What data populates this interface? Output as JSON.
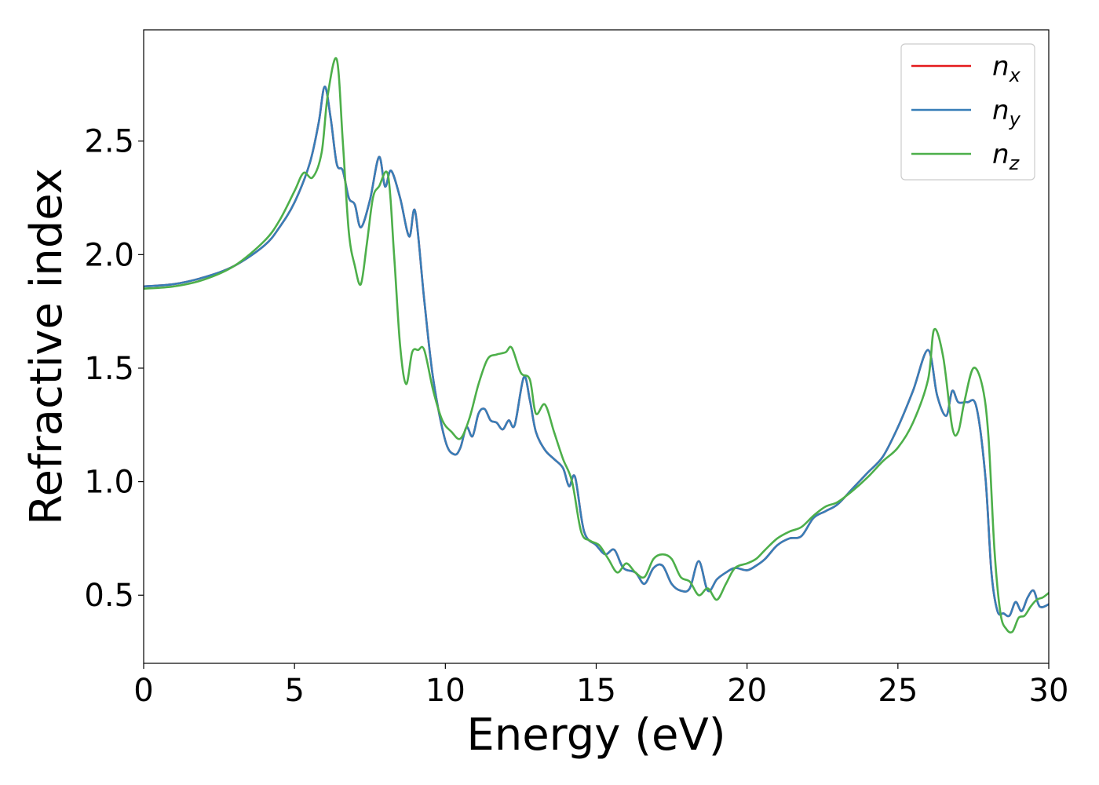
{
  "chart_data": {
    "type": "line",
    "title": "",
    "xlabel": "Energy (eV)",
    "ylabel": "Refractive index",
    "xlim": [
      0,
      30
    ],
    "ylim": [
      0.2,
      2.99
    ],
    "xticks": [
      0,
      5,
      10,
      15,
      20,
      25,
      30
    ],
    "yticks": [
      0.5,
      1.0,
      1.5,
      2.0,
      2.5
    ],
    "xtick_labels": [
      "0",
      "5",
      "10",
      "15",
      "20",
      "25",
      "30"
    ],
    "ytick_labels": [
      "0.5",
      "1.0",
      "1.5",
      "2.0",
      "2.5"
    ],
    "grid": false,
    "legend_position": "top-right",
    "series": [
      {
        "name": "n_x",
        "legend_base": "n",
        "legend_sub": "x",
        "color": "#e41a1c",
        "x": [
          0,
          1,
          2,
          3,
          4,
          4.5,
          5,
          5.5,
          5.8,
          6,
          6.2,
          6.4,
          6.6,
          6.8,
          7,
          7.2,
          7.5,
          7.8,
          8,
          8.2,
          8.5,
          8.8,
          9,
          9.3,
          9.6,
          10,
          10.3,
          10.5,
          10.7,
          10.9,
          11.1,
          11.3,
          11.5,
          11.7,
          11.9,
          12.1,
          12.3,
          12.6,
          12.8,
          13,
          13.3,
          13.6,
          13.9,
          14.1,
          14.3,
          14.6,
          15,
          15.3,
          15.6,
          15.9,
          16.3,
          16.6,
          16.9,
          17.2,
          17.5,
          17.8,
          18.1,
          18.4,
          18.7,
          19,
          19.3,
          19.6,
          20,
          20.3,
          20.6,
          21,
          21.4,
          21.8,
          22.2,
          22.6,
          23,
          23.5,
          24,
          24.5,
          25,
          25.5,
          26,
          26.3,
          26.6,
          26.8,
          27,
          27.3,
          27.6,
          27.9,
          28.1,
          28.3,
          28.5,
          28.7,
          28.9,
          29.1,
          29.3,
          29.5,
          29.7,
          30
        ],
        "y": [
          1.86,
          1.87,
          1.9,
          1.95,
          2.04,
          2.12,
          2.23,
          2.4,
          2.58,
          2.74,
          2.6,
          2.4,
          2.37,
          2.25,
          2.22,
          2.12,
          2.24,
          2.43,
          2.3,
          2.37,
          2.25,
          2.08,
          2.19,
          1.8,
          1.45,
          1.18,
          1.12,
          1.15,
          1.24,
          1.2,
          1.3,
          1.32,
          1.27,
          1.26,
          1.23,
          1.27,
          1.25,
          1.46,
          1.36,
          1.22,
          1.14,
          1.1,
          1.06,
          0.98,
          1.02,
          0.78,
          0.72,
          0.68,
          0.7,
          0.62,
          0.6,
          0.55,
          0.62,
          0.63,
          0.55,
          0.52,
          0.53,
          0.65,
          0.52,
          0.57,
          0.6,
          0.62,
          0.61,
          0.63,
          0.66,
          0.72,
          0.75,
          0.76,
          0.84,
          0.87,
          0.9,
          0.97,
          1.04,
          1.11,
          1.24,
          1.4,
          1.58,
          1.38,
          1.29,
          1.4,
          1.35,
          1.35,
          1.33,
          1.02,
          0.6,
          0.43,
          0.42,
          0.41,
          0.47,
          0.43,
          0.49,
          0.52,
          0.45,
          0.46
        ]
      },
      {
        "name": "n_y",
        "legend_base": "n",
        "legend_sub": "y",
        "color": "#377eb8",
        "x": [
          0,
          1,
          2,
          3,
          4,
          4.5,
          5,
          5.5,
          5.8,
          6,
          6.2,
          6.4,
          6.6,
          6.8,
          7,
          7.2,
          7.5,
          7.8,
          8,
          8.2,
          8.5,
          8.8,
          9,
          9.3,
          9.6,
          10,
          10.3,
          10.5,
          10.7,
          10.9,
          11.1,
          11.3,
          11.5,
          11.7,
          11.9,
          12.1,
          12.3,
          12.6,
          12.8,
          13,
          13.3,
          13.6,
          13.9,
          14.1,
          14.3,
          14.6,
          15,
          15.3,
          15.6,
          15.9,
          16.3,
          16.6,
          16.9,
          17.2,
          17.5,
          17.8,
          18.1,
          18.4,
          18.7,
          19,
          19.3,
          19.6,
          20,
          20.3,
          20.6,
          21,
          21.4,
          21.8,
          22.2,
          22.6,
          23,
          23.5,
          24,
          24.5,
          25,
          25.5,
          26,
          26.3,
          26.6,
          26.8,
          27,
          27.3,
          27.6,
          27.9,
          28.1,
          28.3,
          28.5,
          28.7,
          28.9,
          29.1,
          29.3,
          29.5,
          29.7,
          30
        ],
        "y": [
          1.86,
          1.87,
          1.9,
          1.95,
          2.04,
          2.12,
          2.23,
          2.4,
          2.58,
          2.74,
          2.6,
          2.4,
          2.37,
          2.25,
          2.22,
          2.12,
          2.24,
          2.43,
          2.3,
          2.37,
          2.25,
          2.08,
          2.19,
          1.8,
          1.45,
          1.18,
          1.12,
          1.15,
          1.24,
          1.2,
          1.3,
          1.32,
          1.27,
          1.26,
          1.23,
          1.27,
          1.25,
          1.46,
          1.36,
          1.22,
          1.14,
          1.1,
          1.06,
          0.98,
          1.02,
          0.78,
          0.72,
          0.68,
          0.7,
          0.62,
          0.6,
          0.55,
          0.62,
          0.63,
          0.55,
          0.52,
          0.53,
          0.65,
          0.52,
          0.57,
          0.6,
          0.62,
          0.61,
          0.63,
          0.66,
          0.72,
          0.75,
          0.76,
          0.84,
          0.87,
          0.9,
          0.97,
          1.04,
          1.11,
          1.24,
          1.4,
          1.58,
          1.38,
          1.29,
          1.4,
          1.35,
          1.35,
          1.33,
          1.02,
          0.6,
          0.43,
          0.42,
          0.41,
          0.47,
          0.43,
          0.49,
          0.52,
          0.45,
          0.46
        ]
      },
      {
        "name": "n_z",
        "legend_base": "n",
        "legend_sub": "z",
        "color": "#4daf4a",
        "x": [
          0,
          1,
          2,
          3,
          4,
          4.5,
          5,
          5.3,
          5.6,
          5.9,
          6.1,
          6.4,
          6.6,
          6.8,
          7,
          7.2,
          7.4,
          7.6,
          7.8,
          8.1,
          8.3,
          8.5,
          8.7,
          8.9,
          9.1,
          9.3,
          9.6,
          9.9,
          10.2,
          10.5,
          10.8,
          11.1,
          11.4,
          11.7,
          12,
          12.2,
          12.5,
          12.8,
          13,
          13.3,
          13.6,
          13.9,
          14.2,
          14.5,
          14.8,
          15.1,
          15.4,
          15.7,
          16,
          16.3,
          16.6,
          16.9,
          17.2,
          17.5,
          17.8,
          18.1,
          18.4,
          18.7,
          19,
          19.3,
          19.6,
          20,
          20.3,
          20.6,
          21,
          21.4,
          21.8,
          22.2,
          22.6,
          23,
          23.5,
          24,
          24.5,
          25,
          25.5,
          26,
          26.2,
          26.5,
          26.8,
          27,
          27.2,
          27.5,
          27.8,
          28,
          28.2,
          28.4,
          28.6,
          28.8,
          29,
          29.2,
          29.4,
          29.6,
          29.8,
          30
        ],
        "y": [
          1.85,
          1.86,
          1.89,
          1.95,
          2.06,
          2.15,
          2.28,
          2.36,
          2.34,
          2.45,
          2.7,
          2.86,
          2.5,
          2.1,
          1.95,
          1.87,
          2.05,
          2.25,
          2.3,
          2.35,
          2.0,
          1.6,
          1.43,
          1.57,
          1.58,
          1.58,
          1.4,
          1.27,
          1.22,
          1.19,
          1.28,
          1.43,
          1.54,
          1.56,
          1.57,
          1.59,
          1.48,
          1.45,
          1.3,
          1.34,
          1.22,
          1.1,
          1.0,
          0.78,
          0.74,
          0.72,
          0.66,
          0.6,
          0.64,
          0.6,
          0.58,
          0.66,
          0.68,
          0.66,
          0.58,
          0.56,
          0.5,
          0.53,
          0.48,
          0.55,
          0.62,
          0.64,
          0.66,
          0.7,
          0.75,
          0.78,
          0.8,
          0.85,
          0.89,
          0.91,
          0.96,
          1.02,
          1.09,
          1.15,
          1.26,
          1.45,
          1.67,
          1.55,
          1.24,
          1.22,
          1.35,
          1.5,
          1.42,
          1.2,
          0.7,
          0.42,
          0.35,
          0.34,
          0.4,
          0.41,
          0.45,
          0.48,
          0.49,
          0.51
        ]
      }
    ]
  }
}
